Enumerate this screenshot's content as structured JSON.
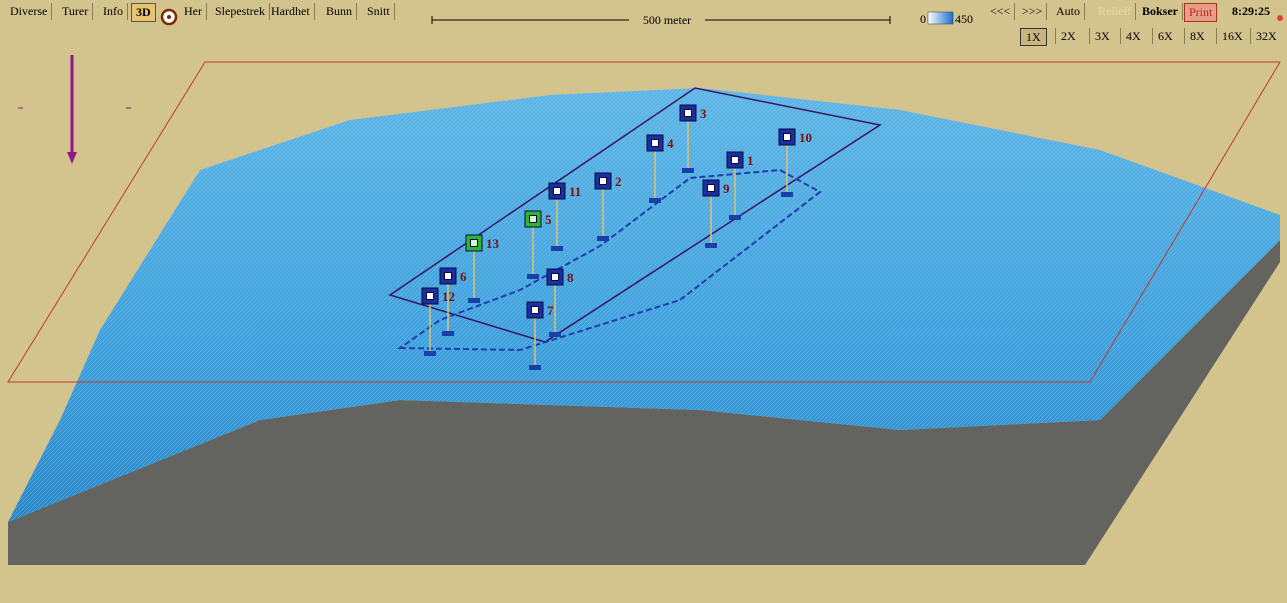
{
  "toolbar": {
    "buttons": [
      "Diverse",
      "Turer",
      "Info",
      "3D",
      "Her",
      "Slepestrek",
      "Hardhet",
      "Bunn",
      "Snitt"
    ],
    "scale_label": "500 meter",
    "depth_min": "0",
    "depth_max": "450",
    "nav": [
      "<<<",
      ">>>",
      "Auto",
      "Relieff",
      "Bokser",
      "Print"
    ],
    "clock": "8:29:25"
  },
  "zoom": [
    "1X",
    "2X",
    "3X",
    "4X",
    "6X",
    "8X",
    "16X",
    "32X"
  ],
  "markers": [
    {
      "label": "3"
    },
    {
      "label": "10"
    },
    {
      "label": "4"
    },
    {
      "label": "1"
    },
    {
      "label": "2"
    },
    {
      "label": "9"
    },
    {
      "label": "11"
    },
    {
      "label": "5"
    },
    {
      "label": "13"
    },
    {
      "label": "6"
    },
    {
      "label": "8"
    },
    {
      "label": "12"
    },
    {
      "label": "7"
    }
  ]
}
